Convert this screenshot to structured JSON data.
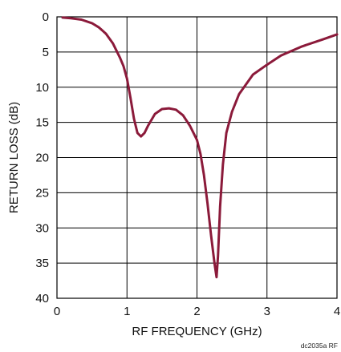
{
  "chart_data": {
    "type": "line",
    "xlabel": "RF FREQUENCY (GHz)",
    "ylabel": "RETURN LOSS (dB)",
    "xlim": [
      0,
      4
    ],
    "ylim": [
      0,
      40
    ],
    "y_inverted": true,
    "grid": true,
    "x_ticks": [
      "0",
      "1",
      "2",
      "3",
      "4"
    ],
    "y_ticks": [
      "0",
      "5",
      "10",
      "15",
      "20",
      "25",
      "30",
      "35",
      "40"
    ],
    "footnote": "dc2035a RF",
    "colors": {
      "series": "#8b1a3a"
    },
    "series": [
      {
        "x": [
          0.08,
          0.2,
          0.35,
          0.5,
          0.6,
          0.7,
          0.8,
          0.9,
          0.95,
          1.0,
          1.05,
          1.1,
          1.15,
          1.2,
          1.25,
          1.3,
          1.4,
          1.5,
          1.6,
          1.7,
          1.8,
          1.9,
          2.0,
          2.05,
          2.1,
          2.15,
          2.2,
          2.25,
          2.28,
          2.3,
          2.33,
          2.37,
          2.42,
          2.5,
          2.6,
          2.8,
          3.0,
          3.2,
          3.5,
          3.8,
          4.0
        ],
        "values": [
          0.1,
          0.2,
          0.4,
          0.9,
          1.5,
          2.4,
          3.8,
          5.8,
          7.0,
          8.8,
          11.5,
          14.5,
          16.5,
          17.0,
          16.5,
          15.5,
          13.8,
          13.1,
          13.0,
          13.2,
          14.0,
          15.5,
          17.5,
          19.5,
          22.5,
          26.5,
          31.0,
          35.0,
          37.0,
          34.0,
          27.0,
          21.0,
          16.5,
          13.5,
          11.0,
          8.2,
          6.8,
          5.5,
          4.2,
          3.2,
          2.5
        ]
      }
    ]
  }
}
